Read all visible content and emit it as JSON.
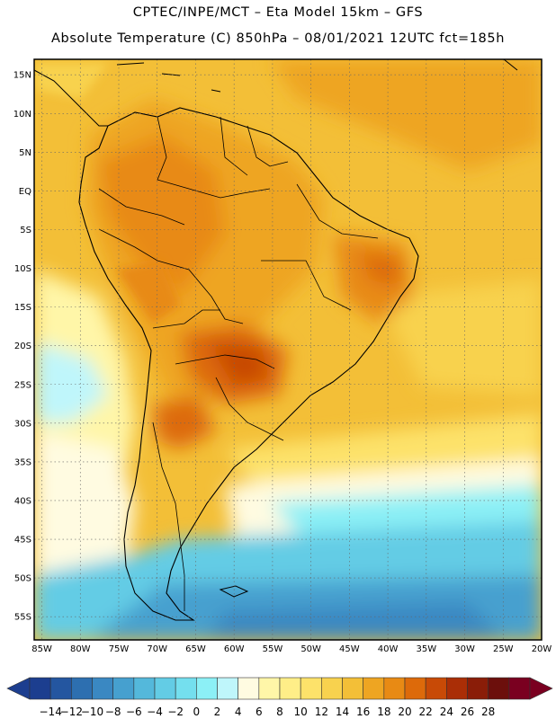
{
  "header": {
    "line1": "CPTEC/INPE/MCT –  Eta Model 15km – GFS",
    "line2": "Absolute Temperature (C) 850hPa – 08/01/2021 12UTC fct=185h"
  },
  "map": {
    "projection": "lat-lon",
    "lon_range": [
      -86,
      -20
    ],
    "lat_range": [
      -58,
      17
    ],
    "grid": "dotted",
    "lat_ticks": [
      "15N",
      "10N",
      "5N",
      "EQ",
      "5S",
      "10S",
      "15S",
      "20S",
      "25S",
      "30S",
      "35S",
      "40S",
      "45S",
      "50S",
      "55S"
    ],
    "lat_values": [
      15,
      10,
      5,
      0,
      -5,
      -10,
      -15,
      -20,
      -25,
      -30,
      -35,
      -40,
      -45,
      -50,
      -55
    ],
    "lon_ticks": [
      "85W",
      "80W",
      "75W",
      "70W",
      "65W",
      "60W",
      "55W",
      "50W",
      "45W",
      "40W",
      "35W",
      "30W",
      "25W",
      "20W"
    ],
    "lon_values": [
      -85,
      -80,
      -75,
      -70,
      -65,
      -60,
      -55,
      -50,
      -45,
      -40,
      -35,
      -30,
      -25,
      -20
    ]
  },
  "colorbar": {
    "labels": [
      "-14",
      "-12",
      "-10",
      "-8",
      "-6",
      "-4",
      "-2",
      "0",
      "2",
      "4",
      "6",
      "8",
      "10",
      "12",
      "14",
      "16",
      "18",
      "20",
      "22",
      "24",
      "26",
      "28"
    ],
    "colors": [
      "#1c3e8f",
      "#2456a0",
      "#2d6fb0",
      "#3a88c2",
      "#46a0cf",
      "#54b8db",
      "#63cce5",
      "#74dfee",
      "#8cf0f6",
      "#bff6fb",
      "#fffbe1",
      "#fff6a8",
      "#ffee88",
      "#fde26a",
      "#f8d24e",
      "#f3bf37",
      "#eea522",
      "#e88a14",
      "#dd6a0a",
      "#c84a06",
      "#aa2e06",
      "#8a1d08",
      "#6c0f0c",
      "#7a0020"
    ]
  }
}
